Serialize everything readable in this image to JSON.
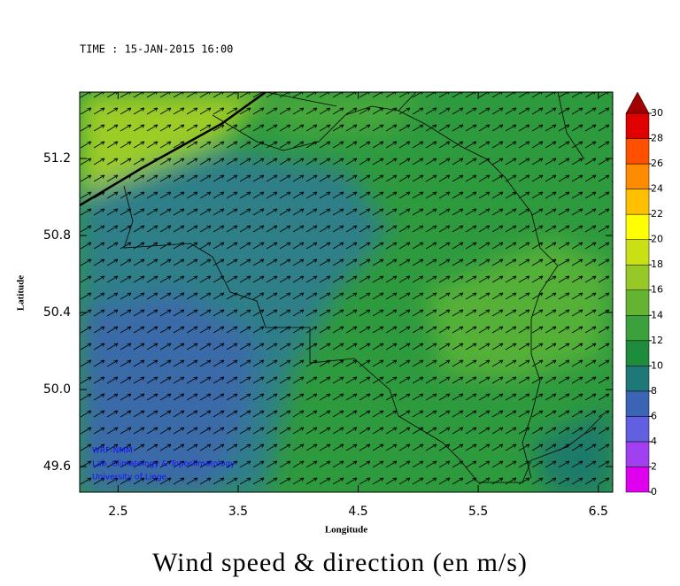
{
  "chart_data": {
    "type": "map",
    "subtitle": "TIME : 15-JAN-2015 16:00",
    "title": "Wind speed & direction (en m/s)",
    "x_label": "Longitude",
    "y_label": "Latitude",
    "xlim": [
      2.18,
      6.62
    ],
    "xticks": [
      2.5,
      3.5,
      4.5,
      5.5,
      6.5
    ],
    "ylim": [
      49.467,
      51.545
    ],
    "yticks": [
      49.6,
      {
        "value": 50,
        "label": "50.0"
      },
      50.4,
      50.8,
      51.2
    ],
    "annotations": [
      "WRF-NMM",
      "Lab. Climatology & Topoclimatology",
      "University of Liege"
    ],
    "colorbar": {
      "ticks": [
        0,
        2,
        4,
        6,
        8,
        10,
        12,
        14,
        16,
        18,
        20,
        22,
        24,
        26,
        28,
        30
      ],
      "colors": [
        "#e000f0",
        "#a040f0",
        "#6060e0",
        "#3c64b4",
        "#1e7878",
        "#1e8c3c",
        "#3ca03c",
        "#64b432",
        "#96c828",
        "#c8e014",
        "#ffff00",
        "#ffc000",
        "#ff8c00",
        "#ff5000",
        "#e00000",
        "#a00000"
      ]
    }
  }
}
